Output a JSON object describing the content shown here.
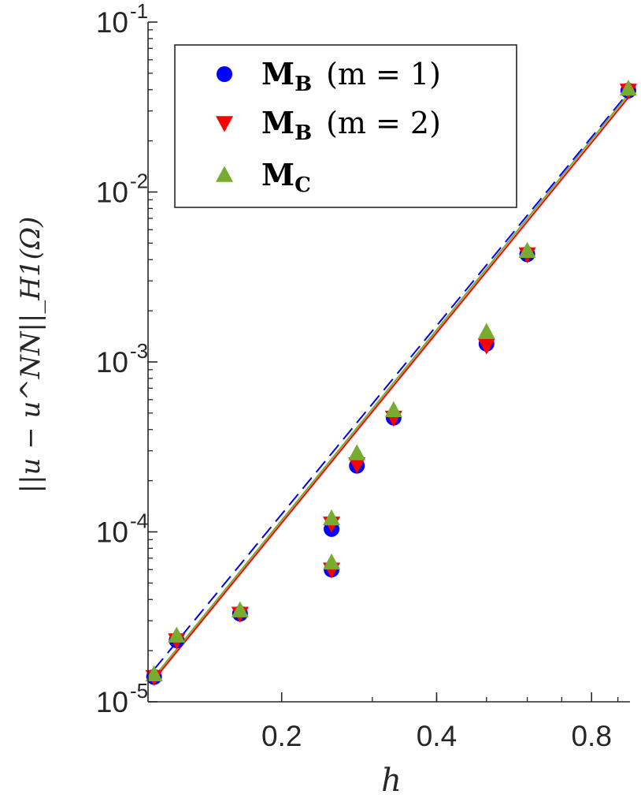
{
  "chart_data": {
    "type": "scatter",
    "xscale": "log",
    "yscale": "log",
    "xlim": [
      0.11,
      0.95
    ],
    "ylim": [
      1e-05,
      0.1
    ],
    "xticks": [
      0.2,
      0.4,
      0.8
    ],
    "xtick_labels": [
      "0.2",
      "0.4",
      "0.8"
    ],
    "yticks": [
      1e-05,
      0.0001,
      0.001,
      0.01,
      0.1
    ],
    "ytick_labels": [
      {
        "base": "10",
        "exp": "-5"
      },
      {
        "base": "10",
        "exp": "-4"
      },
      {
        "base": "10",
        "exp": "-3"
      },
      {
        "base": "10",
        "exp": "-2"
      },
      {
        "base": "10",
        "exp": "-1"
      }
    ],
    "xlabel": "h",
    "ylabel": "||u − u^NN||_H1(Ω)",
    "legend_position": "top-left",
    "series": [
      {
        "name": "M_B (m = 1)",
        "legend_label": {
          "main": "M",
          "sub": "B",
          "extra": "(m = 1)"
        },
        "marker": "circle",
        "color": "#0000ff",
        "fit_style": "dashed",
        "fit_line": {
          "x": [
            0.113,
            0.943
          ],
          "y": [
            1.55e-05,
            0.0385
          ]
        },
        "x": [
          0.113,
          0.125,
          0.166,
          0.25,
          0.25,
          0.28,
          0.33,
          0.5,
          0.6,
          0.943
        ],
        "y": [
          1.4e-05,
          2.3e-05,
          3.3e-05,
          6e-05,
          0.000104,
          0.000245,
          0.00047,
          0.00128,
          0.0043,
          0.0395
        ]
      },
      {
        "name": "M_B (m = 2)",
        "legend_label": {
          "main": "M",
          "sub": "B",
          "extra": "(m = 2)"
        },
        "marker": "triangle-down",
        "color": "#ff0000",
        "fit_style": "solid",
        "fit_line": {
          "x": [
            0.113,
            0.943
          ],
          "y": [
            1.35e-05,
            0.036
          ]
        },
        "x": [
          0.113,
          0.125,
          0.166,
          0.25,
          0.25,
          0.28,
          0.33,
          0.5,
          0.6,
          0.943
        ],
        "y": [
          1.4e-05,
          2.3e-05,
          3.3e-05,
          6e-05,
          0.000112,
          0.00025,
          0.00047,
          0.00125,
          0.0043,
          0.0395
        ]
      },
      {
        "name": "M_C",
        "legend_label": {
          "main": "M",
          "sub": "C",
          "extra": ""
        },
        "marker": "triangle-up",
        "color": "#77ac30",
        "fit_style": "solid",
        "fit_line": {
          "x": [
            0.113,
            0.943
          ],
          "y": [
            1.4e-05,
            0.0375
          ]
        },
        "x": [
          0.113,
          0.125,
          0.166,
          0.25,
          0.25,
          0.28,
          0.33,
          0.5,
          0.6,
          0.943
        ],
        "y": [
          1.45e-05,
          2.45e-05,
          3.45e-05,
          6.6e-05,
          0.00012,
          0.00029,
          0.00052,
          0.0015,
          0.0045,
          0.0405
        ]
      }
    ]
  }
}
